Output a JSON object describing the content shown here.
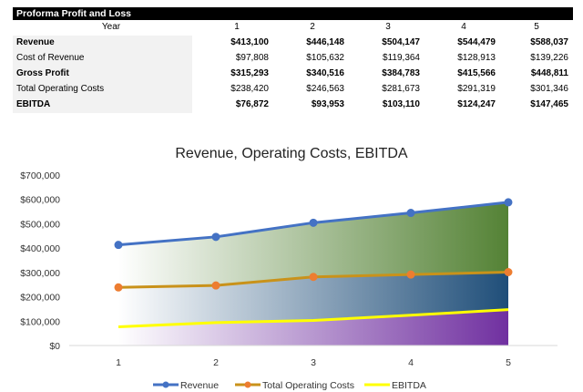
{
  "table": {
    "title": "Proforma Profit and Loss",
    "year_label": "Year",
    "years": [
      "1",
      "2",
      "3",
      "4",
      "5"
    ],
    "rows": [
      {
        "label": "Revenue",
        "bold": true,
        "values": [
          "$413,100",
          "$446,148",
          "$504,147",
          "$544,479",
          "$588,037"
        ]
      },
      {
        "label": "Cost of Revenue",
        "bold": false,
        "values": [
          "$97,808",
          "$105,632",
          "$119,364",
          "$128,913",
          "$139,226"
        ]
      },
      {
        "label": "Gross Profit",
        "bold": true,
        "values": [
          "$315,293",
          "$340,516",
          "$384,783",
          "$415,566",
          "$448,811"
        ]
      },
      {
        "label": "Total Operating Costs",
        "bold": false,
        "values": [
          "$238,420",
          "$246,563",
          "$281,673",
          "$291,319",
          "$301,346"
        ]
      },
      {
        "label": "EBITDA",
        "bold": true,
        "values": [
          "$76,872",
          "$93,953",
          "$103,110",
          "$124,247",
          "$147,465"
        ]
      }
    ]
  },
  "chart_data": {
    "type": "area",
    "title": "Revenue, Operating Costs, EBITDA",
    "x": [
      1,
      2,
      3,
      4,
      5
    ],
    "x_tick_labels": [
      "1",
      "2",
      "3",
      "4",
      "5"
    ],
    "y_tick_labels": [
      "$0",
      "$100,000",
      "$200,000",
      "$300,000",
      "$400,000",
      "$500,000",
      "$600,000",
      "$700,000"
    ],
    "ylim": [
      0,
      700000
    ],
    "legend_position": "bottom",
    "grid": false,
    "series": [
      {
        "name": "Revenue",
        "values": [
          413100,
          446148,
          504147,
          544479,
          588037
        ],
        "color": "#4472c4"
      },
      {
        "name": "Total Operating Costs",
        "values": [
          238420,
          246563,
          281673,
          291319,
          301346
        ],
        "color": "#c9921a"
      },
      {
        "name": "EBITDA",
        "values": [
          76872,
          93953,
          103110,
          124247,
          147465
        ],
        "color": "#ffff00"
      }
    ],
    "fill_colors": {
      "revenue_band": [
        "#ffffff",
        "#548235"
      ],
      "costs_band": [
        "#ffffff",
        "#1f4e79"
      ],
      "ebitda_band": [
        "#ffffff",
        "#7030a0"
      ]
    },
    "marker_colors": {
      "Revenue": "#4472c4",
      "Total Operating Costs": "#ed7d31"
    }
  }
}
